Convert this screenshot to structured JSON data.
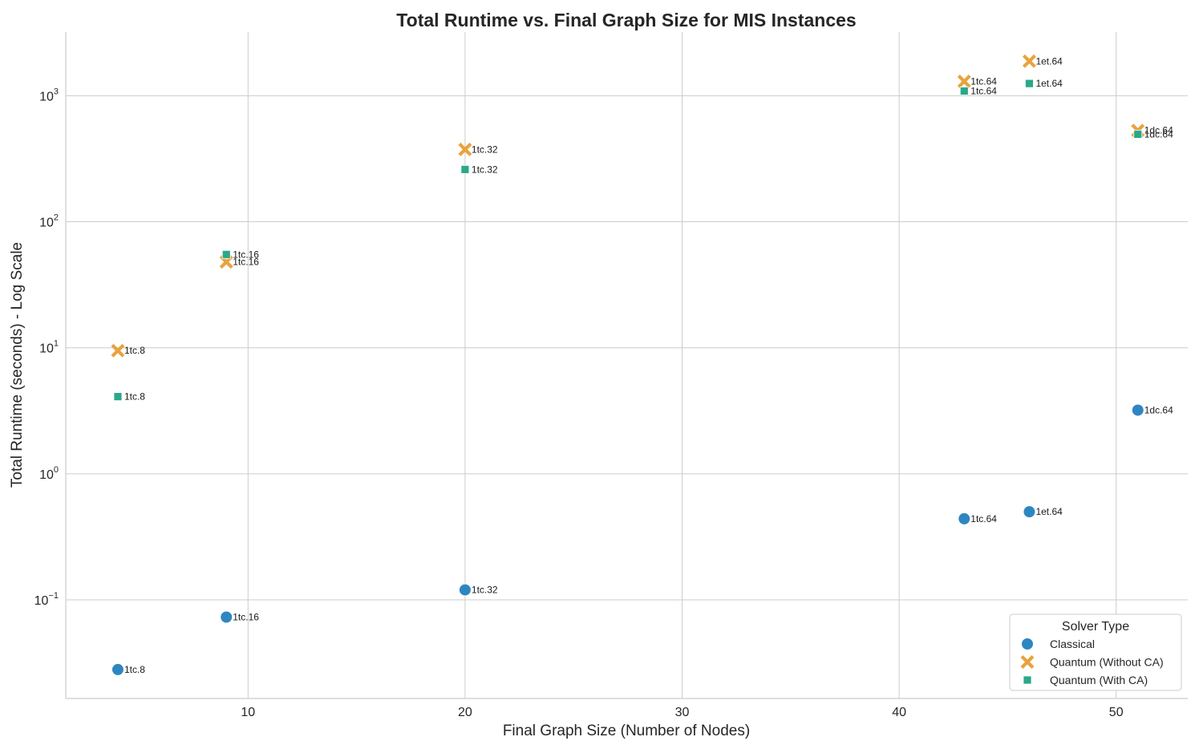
{
  "chart_data": {
    "type": "scatter",
    "title": "Total Runtime vs. Final Graph Size for MIS Instances",
    "xlabel": "Final Graph Size (Number of Nodes)",
    "ylabel": "Total Runtime (seconds) - Log Scale",
    "xlim": [
      1.6,
      53.3
    ],
    "ylim": [
      0.0165,
      3200
    ],
    "yscale": "log",
    "xticks": [
      10,
      20,
      30,
      40,
      50
    ],
    "yticks": [
      {
        "value": 0.1,
        "base": "10",
        "exp": "−1"
      },
      {
        "value": 1,
        "base": "10",
        "exp": "0"
      },
      {
        "value": 10,
        "base": "10",
        "exp": "1"
      },
      {
        "value": 100,
        "base": "10",
        "exp": "2"
      },
      {
        "value": 1000,
        "base": "10",
        "exp": "3"
      }
    ],
    "grid": true,
    "legend": {
      "title": "Solver Type",
      "position": "lower-right"
    },
    "series": [
      {
        "name": "Classical",
        "marker": "circle",
        "color": "#2e86c1",
        "points": [
          {
            "x": 4,
            "y": 0.028,
            "label": "1tc.8"
          },
          {
            "x": 9,
            "y": 0.073,
            "label": "1tc.16"
          },
          {
            "x": 20,
            "y": 0.12,
            "label": "1tc.32"
          },
          {
            "x": 43,
            "y": 0.44,
            "label": "1tc.64"
          },
          {
            "x": 46,
            "y": 0.5,
            "label": "1et.64"
          },
          {
            "x": 51,
            "y": 3.2,
            "label": "1dc.64"
          }
        ]
      },
      {
        "name": "Quantum (Without CA)",
        "marker": "x",
        "color": "#e8a33d",
        "points": [
          {
            "x": 4,
            "y": 9.5,
            "label": "1tc.8"
          },
          {
            "x": 9,
            "y": 48,
            "label": "1tc.16"
          },
          {
            "x": 20,
            "y": 375,
            "label": "1tc.32"
          },
          {
            "x": 43,
            "y": 1300,
            "label": "1tc.64"
          },
          {
            "x": 46,
            "y": 1880,
            "label": "1et.64"
          },
          {
            "x": 51,
            "y": 530,
            "label": "1dc.64"
          }
        ]
      },
      {
        "name": "Quantum (With CA)",
        "marker": "square",
        "color": "#2aa889",
        "points": [
          {
            "x": 4,
            "y": 4.1,
            "label": "1tc.8"
          },
          {
            "x": 9,
            "y": 55,
            "label": "1tc.16"
          },
          {
            "x": 20,
            "y": 260,
            "label": "1tc.32"
          },
          {
            "x": 43,
            "y": 1090,
            "label": "1tc.64"
          },
          {
            "x": 46,
            "y": 1250,
            "label": "1et.64"
          },
          {
            "x": 51,
            "y": 495,
            "label": "1dc.64"
          }
        ]
      }
    ]
  }
}
